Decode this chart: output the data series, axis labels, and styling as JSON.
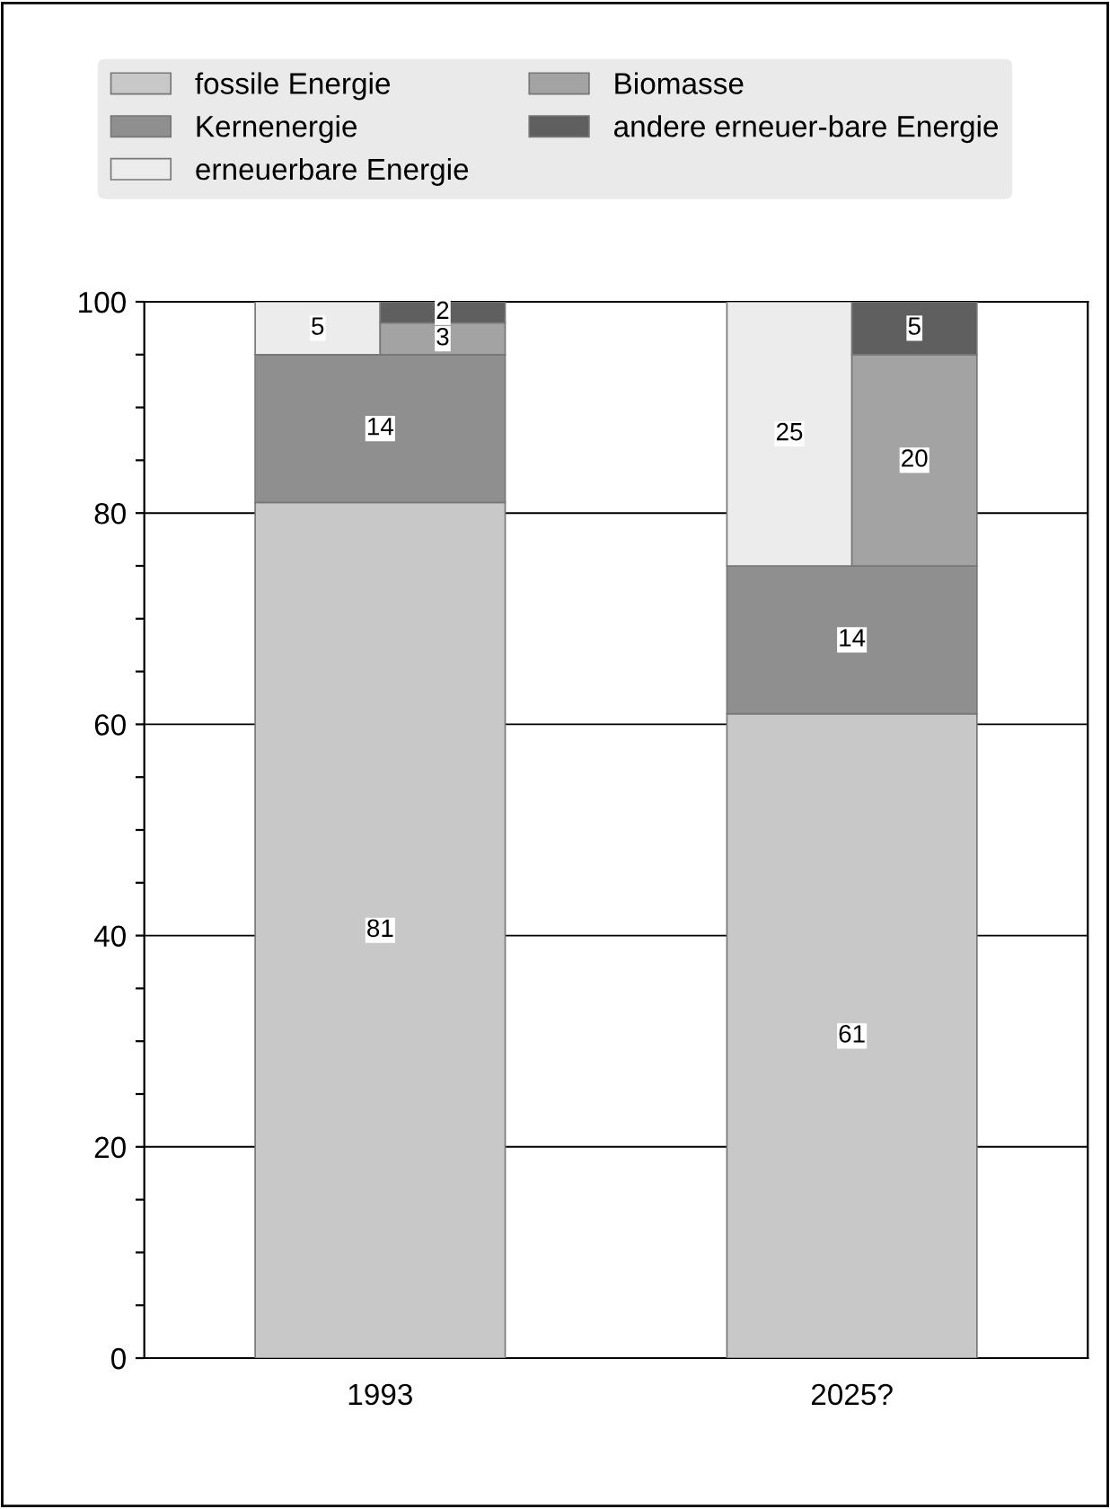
{
  "chart_data": {
    "type": "bar",
    "categories": [
      "1993",
      "2025?"
    ],
    "series": [
      {
        "name": "fossile Energie",
        "color": "#c8c8c8",
        "values": [
          81,
          61
        ],
        "base": [
          0,
          0
        ]
      },
      {
        "name": "Kernenergie",
        "color": "#8f8f8f",
        "values": [
          14,
          14
        ],
        "base": [
          81,
          61
        ]
      },
      {
        "name": "erneuerbare Energie",
        "color": "#ececec",
        "values": [
          5,
          25
        ],
        "base": [
          95,
          75
        ]
      },
      {
        "name": "Biomasse",
        "color": "#a3a3a3",
        "values": [
          3,
          20
        ],
        "base": [
          95,
          75
        ]
      },
      {
        "name": "andere erneuer-bare Energie",
        "color": "#5f5f5f",
        "values": [
          2,
          5
        ],
        "base": [
          98,
          95
        ]
      }
    ],
    "ylim": [
      0,
      100
    ],
    "yticks": [
      0,
      {
        "value": 5,
        "label": null
      },
      {
        "value": 10,
        "label": null
      },
      {
        "value": 15,
        "label": null
      },
      20,
      {
        "value": 25,
        "label": null
      },
      {
        "value": 30,
        "label": null
      },
      {
        "value": 35,
        "label": null
      },
      40,
      {
        "value": 45,
        "label": null
      },
      {
        "value": 50,
        "label": null
      },
      {
        "value": 55,
        "label": null
      },
      60,
      {
        "value": 65,
        "label": null
      },
      {
        "value": 70,
        "label": null
      },
      {
        "value": 75,
        "label": null
      },
      80,
      {
        "value": 85,
        "label": null
      },
      {
        "value": 90,
        "label": null
      },
      {
        "value": 95,
        "label": null
      },
      100
    ],
    "grid": "y",
    "legend": "top",
    "data_labels": true
  }
}
